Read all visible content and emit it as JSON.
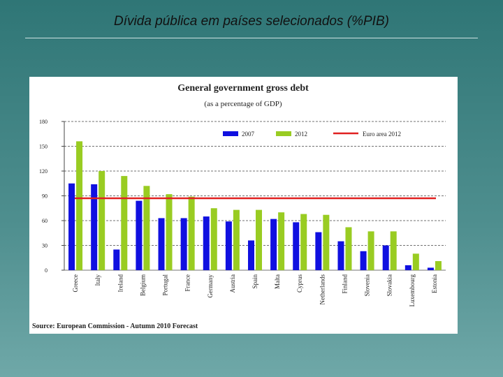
{
  "slide_title": "Dívida pública em países selecionados (%PIB)",
  "chart_data": {
    "type": "bar",
    "title": "General government gross debt",
    "subtitle": "(as a percentage of GDP)",
    "source": "Source: European Commission - Autumn 2010 Forecast",
    "categories": [
      "Greece",
      "Italy",
      "Ireland",
      "Belgium",
      "Portugal",
      "France",
      "Germany",
      "Austria",
      "Spain",
      "Malta",
      "Cyprus",
      "Netherlands",
      "Finland",
      "Slovenia",
      "Slovakia",
      "Luxembourg",
      "Estonia"
    ],
    "series": [
      {
        "name": "2007",
        "color": "#1010e0",
        "values": [
          105,
          104,
          25,
          84,
          63,
          63,
          65,
          59,
          36,
          62,
          58,
          46,
          35,
          23,
          30,
          6,
          3
        ]
      },
      {
        "name": "2012",
        "color": "#99cc22",
        "values": [
          156,
          120,
          114,
          102,
          92,
          89,
          75,
          73,
          73,
          70,
          68,
          67,
          52,
          47,
          47,
          20,
          11
        ]
      }
    ],
    "reference_line": {
      "name": "Euro area 2012",
      "value": 87,
      "color": "#e02020"
    },
    "ylim": [
      0,
      180
    ],
    "yticks": [
      0,
      30,
      60,
      90,
      120,
      150,
      180
    ],
    "grid": true
  }
}
